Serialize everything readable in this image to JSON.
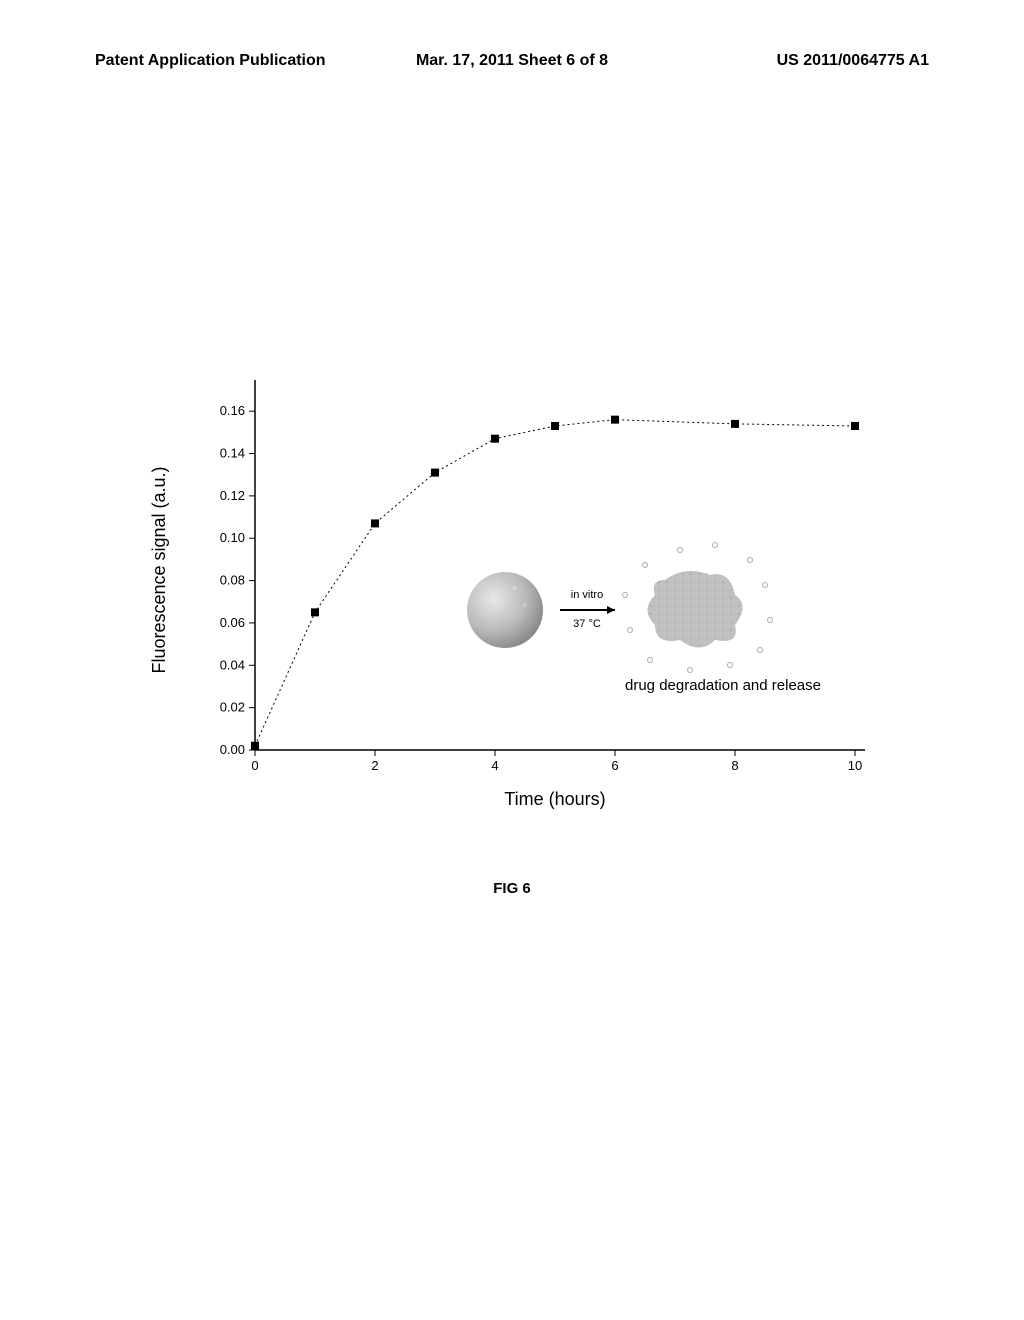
{
  "header": {
    "left": "Patent Application Publication",
    "center": "Mar. 17, 2011  Sheet 6 of 8",
    "right": "US 2011/0064775 A1"
  },
  "chart": {
    "type": "line",
    "xlabel": "Time (hours)",
    "ylabel": "Fluorescence signal (a.u.)",
    "xlim": [
      0,
      10
    ],
    "ylim": [
      0,
      0.17
    ],
    "xticks": [
      0,
      2,
      4,
      6,
      8,
      10
    ],
    "yticks": [
      0.0,
      0.02,
      0.04,
      0.06,
      0.08,
      0.1,
      0.12,
      0.14,
      0.16
    ],
    "ytick_labels": [
      "0.00",
      "0.02",
      "0.04",
      "0.06",
      "0.08",
      "0.10",
      "0.12",
      "0.14",
      "0.16"
    ],
    "data_x": [
      0,
      1,
      2,
      3,
      4,
      5,
      6,
      8,
      10
    ],
    "data_y": [
      0.002,
      0.065,
      0.107,
      0.131,
      0.147,
      0.153,
      0.156,
      0.154,
      0.153
    ],
    "marker": "square",
    "marker_color": "#000000",
    "line_color": "#000000",
    "line_style": "dashed",
    "background_color": "#ffffff",
    "axis_color": "#000000",
    "label_fontsize": 18,
    "tick_fontsize": 13
  },
  "annotation": {
    "text": "drug degradation and release",
    "arrow_label_top": "in vitro",
    "arrow_label_bottom": "37 °C"
  },
  "caption": "FIG 6"
}
